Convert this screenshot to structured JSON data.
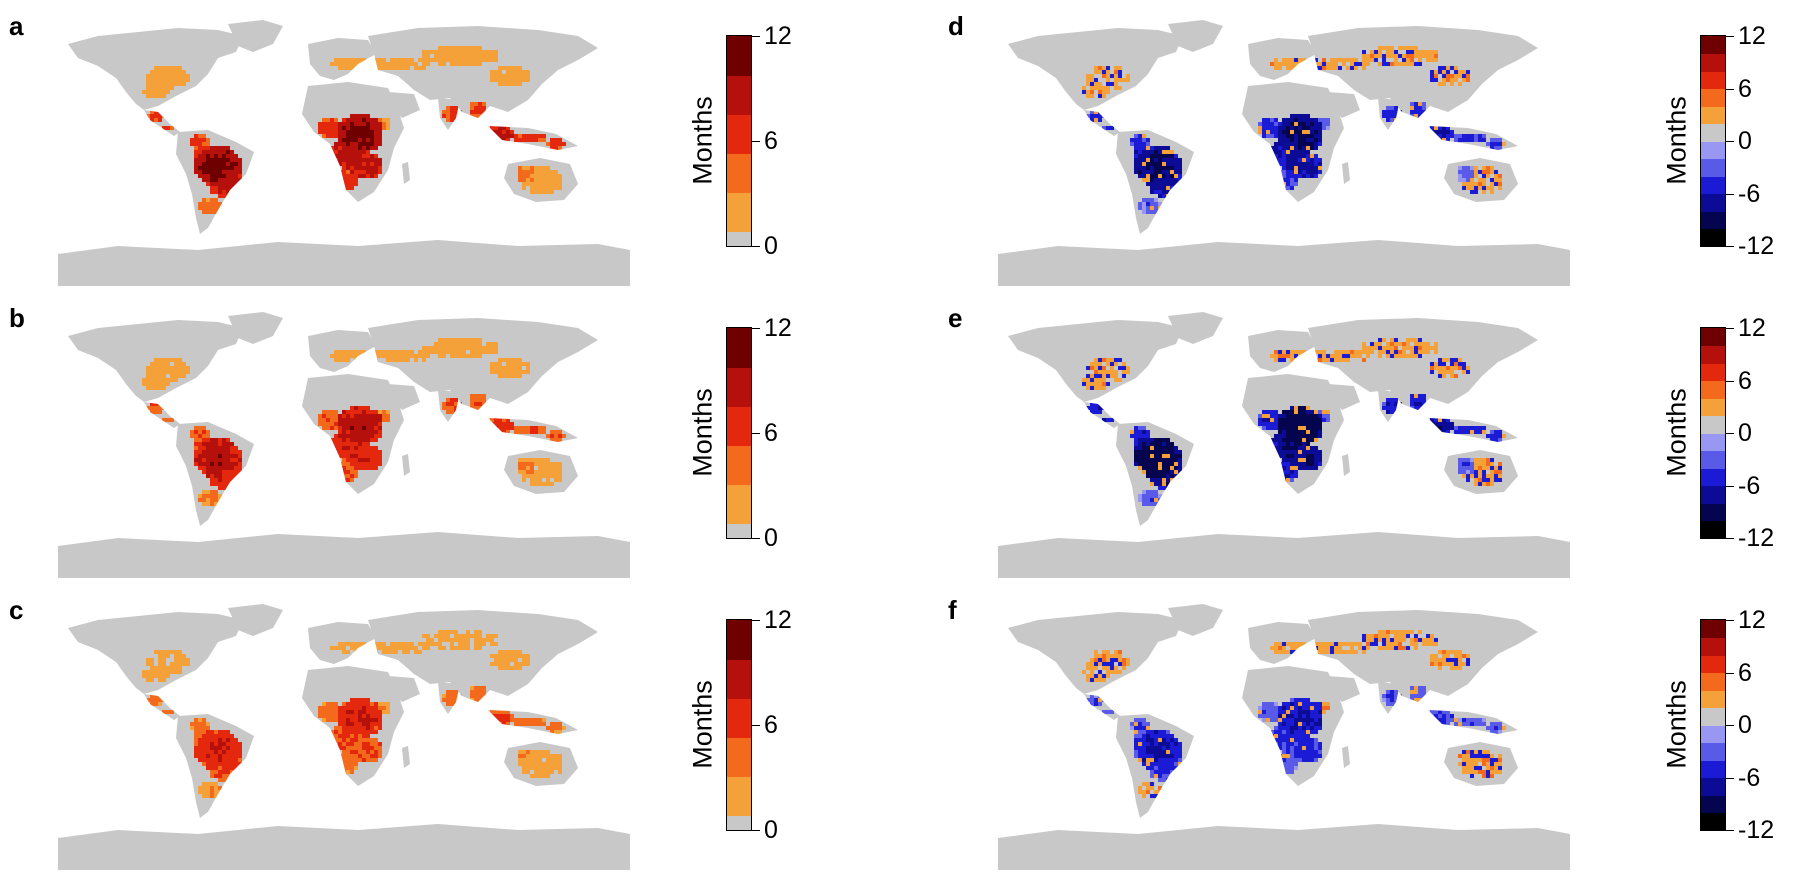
{
  "legend_title": "Months",
  "colors": {
    "land": "#c8c8c8",
    "positive": [
      "#c8c8c8",
      "#f4a13a",
      "#f46a1c",
      "#e3280e",
      "#b5100b",
      "#6e0000"
    ],
    "diverging": [
      "#000000",
      "#05054f",
      "#0b0b95",
      "#1b1bd6",
      "#5a5ae8",
      "#9898f2",
      "#c8c8c8",
      "#f4a13a",
      "#f46a1c",
      "#e3280e",
      "#b5100b",
      "#6e0000"
    ]
  },
  "panels": [
    {
      "label": "a",
      "legend": {
        "ticks": [
          "0",
          "6",
          "12"
        ]
      }
    },
    {
      "label": "b",
      "legend": {
        "ticks": [
          "0",
          "6",
          "12"
        ]
      }
    },
    {
      "label": "c",
      "legend": {
        "ticks": [
          "0",
          "6",
          "12"
        ]
      }
    },
    {
      "label": "d",
      "legend": {
        "ticks": [
          "-12",
          "-6",
          "0",
          "6",
          "12"
        ]
      }
    },
    {
      "label": "e",
      "legend": {
        "ticks": [
          "-12",
          "-6",
          "0",
          "6",
          "12"
        ]
      }
    },
    {
      "label": "f",
      "legend": {
        "ticks": [
          "-12",
          "-6",
          "0",
          "6",
          "12"
        ]
      }
    }
  ]
}
